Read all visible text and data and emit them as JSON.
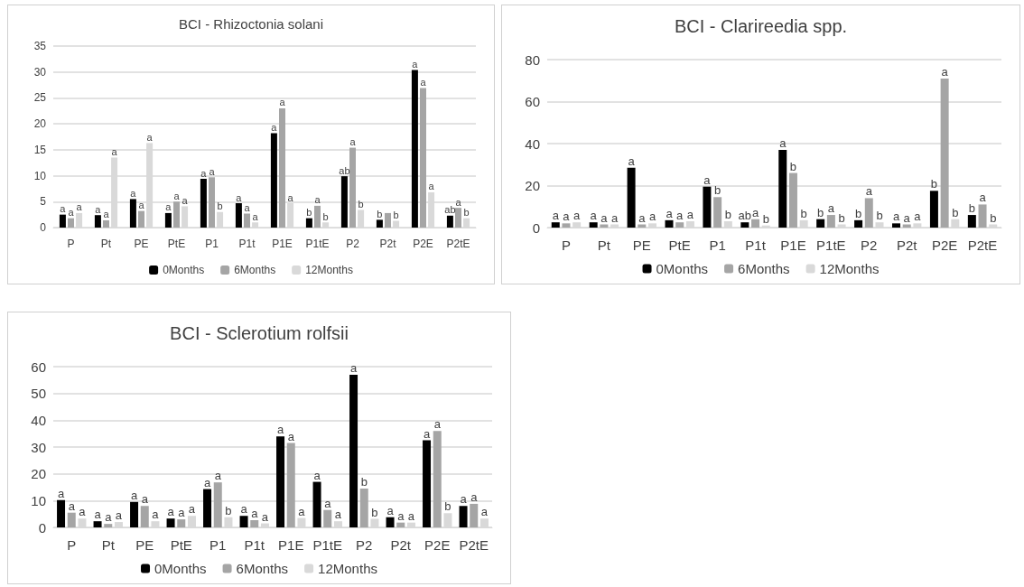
{
  "chart_data": [
    {
      "type": "bar",
      "title": "BCI - Rhizoctonia solani",
      "categories": [
        "P",
        "Pt",
        "PE",
        "PtE",
        "P1",
        "P1t",
        "P1E",
        "P1tE",
        "P2",
        "P2t",
        "P2E",
        "P2tE"
      ],
      "ylim": [
        0,
        35
      ],
      "yticks": [
        0,
        5,
        10,
        15,
        20,
        25,
        30,
        35
      ],
      "grid": "y",
      "legend": "bottom",
      "series": [
        {
          "name": "0Months",
          "color": "#000000",
          "values": [
            2.5,
            2.4,
            5.5,
            2.8,
            9.4,
            4.7,
            18.2,
            1.8,
            9.9,
            1.5,
            30.4,
            2.3
          ],
          "value_labels": [
            "a",
            "a",
            "a",
            "a",
            "a",
            "a",
            "a",
            "b",
            "ab",
            "b",
            "a",
            "ab"
          ]
        },
        {
          "name": "6Months",
          "color": "#a5a5a5",
          "values": [
            1.8,
            1.4,
            3.2,
            5.0,
            9.7,
            2.7,
            23.0,
            4.2,
            15.4,
            2.8,
            26.9,
            3.8
          ],
          "value_labels": [
            "a",
            "a",
            "a",
            "a",
            "a",
            "a",
            "a",
            "a",
            "a",
            null,
            "a",
            "a"
          ]
        },
        {
          "name": "12Months",
          "color": "#d9d9d9",
          "values": [
            2.8,
            13.5,
            16.3,
            4.1,
            3.0,
            1.0,
            4.7,
            1.0,
            3.4,
            1.3,
            6.8,
            1.8
          ],
          "value_labels": [
            "a",
            "a",
            "a",
            "a",
            "b",
            "a",
            "a",
            "b",
            "b",
            "b",
            "a",
            "b"
          ]
        }
      ]
    },
    {
      "type": "bar",
      "title": "BCI - Clarireedia spp.",
      "categories": [
        "P",
        "Pt",
        "PE",
        "PtE",
        "P1",
        "P1t",
        "P1E",
        "P1tE",
        "P2",
        "P2t",
        "P2E",
        "P2tE"
      ],
      "ylim": [
        0,
        80
      ],
      "yticks": [
        0,
        20,
        40,
        60,
        80
      ],
      "grid": "y",
      "legend": "bottom",
      "series": [
        {
          "name": "0Months",
          "color": "#000000",
          "values": [
            2.5,
            2.5,
            28.5,
            3.5,
            19.5,
            2.5,
            37,
            4,
            3.5,
            2,
            17.5,
            6
          ],
          "value_labels": [
            "a",
            "a",
            "a",
            "a",
            "a",
            "ab",
            "a",
            "b",
            "b",
            "a",
            "b",
            "b"
          ]
        },
        {
          "name": "6Months",
          "color": "#a5a5a5",
          "values": [
            2,
            1.5,
            1.5,
            2.5,
            14.5,
            4,
            26,
            6,
            14,
            1.5,
            71,
            11
          ],
          "value_labels": [
            "a",
            "a",
            "a",
            "a",
            "b",
            "a",
            "b",
            "a",
            "a",
            "a",
            "a",
            "a"
          ]
        },
        {
          "name": "12Months",
          "color": "#d9d9d9",
          "values": [
            2.5,
            1.5,
            2,
            3,
            3,
            1,
            3.5,
            1.5,
            2.5,
            2,
            4,
            1.5
          ],
          "value_labels": [
            "a",
            "a",
            "a",
            "a",
            "b",
            "b",
            "b",
            "b",
            "b",
            "a",
            "b",
            "b"
          ]
        }
      ]
    },
    {
      "type": "bar",
      "title": "BCI - Sclerotium rolfsii",
      "categories": [
        "P",
        "Pt",
        "PE",
        "PtE",
        "P1",
        "P1t",
        "P1E",
        "P1tE",
        "P2",
        "P2t",
        "P2E",
        "P2tE"
      ],
      "ylim": [
        0,
        60
      ],
      "yticks": [
        0,
        10,
        20,
        30,
        40,
        50,
        60
      ],
      "grid": "y",
      "legend": "bottom",
      "series": [
        {
          "name": "0Months",
          "color": "#000000",
          "values": [
            10.2,
            2.3,
            9.5,
            3.3,
            14.3,
            4.3,
            34,
            17,
            57,
            3.8,
            32.5,
            8
          ],
          "value_labels": [
            "a",
            "a",
            "a",
            "a",
            "a",
            "a",
            "a",
            "a",
            "a",
            "a",
            "a",
            "a"
          ]
        },
        {
          "name": "6Months",
          "color": "#a5a5a5",
          "values": [
            5.5,
            1.3,
            8.0,
            3.0,
            16.8,
            2.7,
            31.5,
            6.5,
            14.5,
            1.8,
            36,
            8.8
          ],
          "value_labels": [
            "a",
            "a",
            "a",
            "a",
            "a",
            "a",
            "a",
            "a",
            "b",
            "a",
            "a",
            "a"
          ]
        },
        {
          "name": "12Months",
          "color": "#d9d9d9",
          "values": [
            3.3,
            2.0,
            2.3,
            4.3,
            3.8,
            1.5,
            3.5,
            2.3,
            3.2,
            1.8,
            5.3,
            3.3
          ],
          "value_labels": [
            "a",
            "a",
            "a",
            "a",
            "b",
            "a",
            "a",
            "a",
            "b",
            "a",
            "b",
            "a"
          ]
        }
      ]
    }
  ]
}
